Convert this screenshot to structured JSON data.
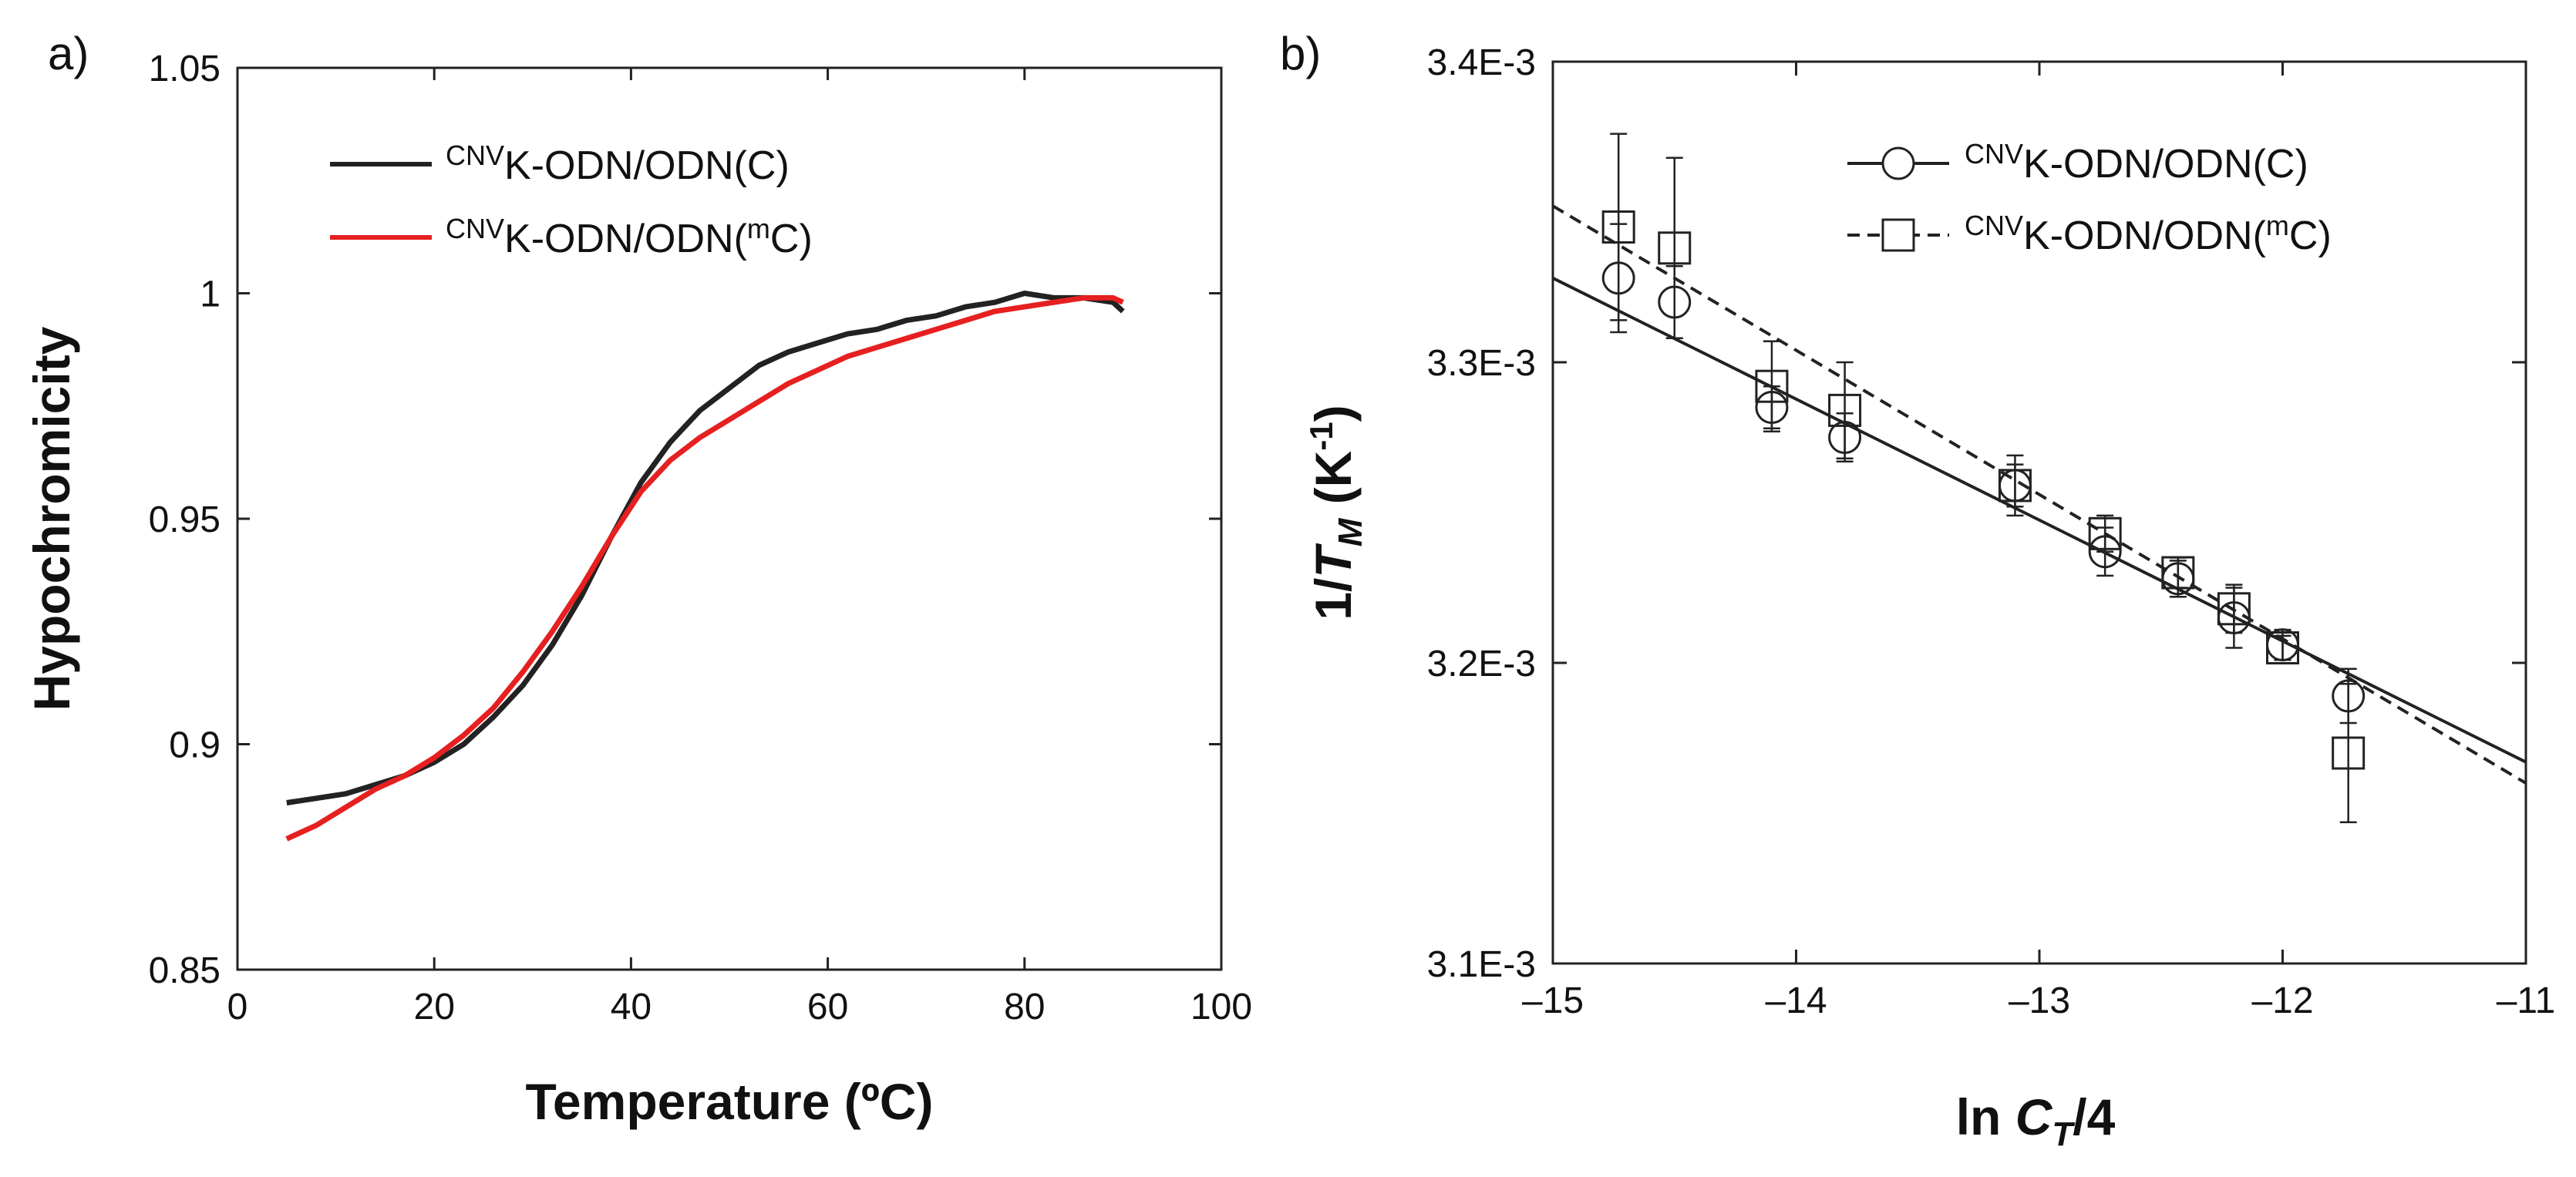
{
  "chart_data": [
    {
      "panel": "a)",
      "type": "line",
      "xlabel": "Temperature (ºC)",
      "ylabel": "Hypochromicity",
      "xlim": [
        0,
        100
      ],
      "ylim": [
        0.85,
        1.05
      ],
      "xticks": [
        0,
        20,
        40,
        60,
        80,
        100
      ],
      "xtick_labels": [
        "0",
        "20",
        "40",
        "60",
        "80",
        "100"
      ],
      "yticks": [
        0.85,
        0.9,
        0.95,
        1.0,
        1.05
      ],
      "ytick_labels": [
        "0.85",
        "0.9",
        "0.95",
        "1",
        "1.05"
      ],
      "grid": false,
      "legend": "top-left",
      "series": [
        {
          "name_sup": "CNV",
          "name_main": "K-ODN/ODN(C)",
          "color": "#222222",
          "x": [
            5,
            8,
            11,
            14,
            17,
            20,
            23,
            26,
            29,
            32,
            35,
            38,
            41,
            44,
            47,
            50,
            53,
            56,
            59,
            62,
            65,
            68,
            71,
            74,
            77,
            80,
            83,
            86,
            89,
            90
          ],
          "y": [
            0.887,
            0.888,
            0.889,
            0.891,
            0.893,
            0.896,
            0.9,
            0.906,
            0.913,
            0.922,
            0.933,
            0.946,
            0.958,
            0.967,
            0.974,
            0.979,
            0.984,
            0.987,
            0.989,
            0.991,
            0.992,
            0.994,
            0.995,
            0.997,
            0.998,
            1.0,
            0.999,
            0.999,
            0.998,
            0.996
          ]
        },
        {
          "name_sup": "CNV",
          "name_main": "K-ODN/ODN(",
          "name_sup2": "m",
          "name_end": "C)",
          "color": "#e62020",
          "x": [
            5,
            8,
            11,
            14,
            17,
            20,
            23,
            26,
            29,
            32,
            35,
            38,
            41,
            44,
            47,
            50,
            53,
            56,
            59,
            62,
            65,
            68,
            71,
            74,
            77,
            80,
            83,
            86,
            89,
            90
          ],
          "y": [
            0.879,
            0.882,
            0.886,
            0.89,
            0.893,
            0.897,
            0.902,
            0.908,
            0.916,
            0.925,
            0.935,
            0.946,
            0.956,
            0.963,
            0.968,
            0.972,
            0.976,
            0.98,
            0.983,
            0.986,
            0.988,
            0.99,
            0.992,
            0.994,
            0.996,
            0.997,
            0.998,
            0.999,
            0.999,
            0.998
          ]
        }
      ]
    },
    {
      "panel": "b)",
      "type": "scatter",
      "xlabel_pre": "ln ",
      "xlabel_italic": "C",
      "xlabel_sub": "T",
      "xlabel_post": "/4",
      "ylabel_pre": "1/",
      "ylabel_italic": "T",
      "ylabel_sub": "M",
      "ylabel_post": " (K",
      "ylabel_sup": "-1",
      "ylabel_end": ")",
      "xlim": [
        -15,
        -11
      ],
      "ylim": [
        0.0031,
        0.0034
      ],
      "xticks": [
        -15,
        -14,
        -13,
        -12,
        -11
      ],
      "xtick_labels": [
        "–15",
        "–14",
        "–13",
        "–12",
        "–11"
      ],
      "yticks": [
        0.0031,
        0.0032,
        0.0033,
        0.0034
      ],
      "ytick_labels": [
        "3.1E-3",
        "3.2E-3",
        "3.3E-3",
        "3.4E-3"
      ],
      "grid": false,
      "legend": "top-right",
      "series": [
        {
          "name_sup": "CNV",
          "name_main": "K-ODN/ODN(C)",
          "marker": "circle",
          "line": "solid",
          "x": [
            -14.73,
            -14.5,
            -14.1,
            -13.8,
            -13.1,
            -12.73,
            -12.43,
            -12.2,
            -12.0,
            -11.73
          ],
          "y": [
            0.003328,
            0.00332,
            0.003285,
            0.003275,
            0.003259,
            0.003237,
            0.003228,
            0.003215,
            0.003206,
            0.003189
          ],
          "err": [
            1.8e-05,
            1.2e-05,
            7e-06,
            8e-06,
            1e-05,
            8e-06,
            6e-06,
            1e-05,
            5e-06,
            9e-06
          ],
          "fit_x": [
            -15,
            -11
          ],
          "fit_y": [
            0.003328,
            0.003167
          ]
        },
        {
          "name_sup": "CNV",
          "name_main": "K-ODN/ODN(",
          "name_sup2": "m",
          "name_end": "C)",
          "marker": "square",
          "line": "dashed",
          "x": [
            -14.73,
            -14.5,
            -14.1,
            -13.8,
            -13.1,
            -12.73,
            -12.43,
            -12.2,
            -12.0,
            -11.73
          ],
          "y": [
            0.003345,
            0.003338,
            0.003292,
            0.003284,
            0.003259,
            0.003243,
            0.00323,
            0.003218,
            0.003205,
            0.00317
          ],
          "err": [
            3.1e-05,
            3e-05,
            1.5e-05,
            1.6e-05,
            7e-06,
            6e-06,
            5e-06,
            8e-06,
            4e-06,
            2.3e-05
          ],
          "fit_x": [
            -15,
            -11
          ],
          "fit_y": [
            0.003352,
            0.00316
          ]
        }
      ]
    }
  ]
}
